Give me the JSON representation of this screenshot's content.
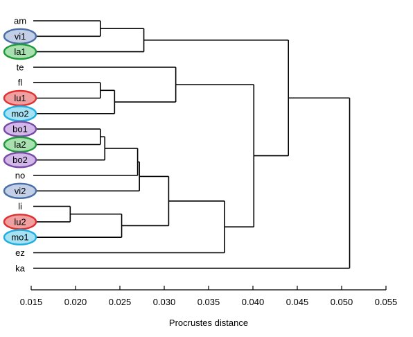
{
  "chart_data": {
    "type": "dendrogram",
    "orientation": "horizontal",
    "xlabel": "Procrustes distance",
    "xlim": [
      0.015,
      0.055
    ],
    "xticks": [
      "0.015",
      "0.020",
      "0.025",
      "0.030",
      "0.035",
      "0.040",
      "0.045",
      "0.050",
      "0.055"
    ],
    "leaves": [
      {
        "label": "am",
        "ellipse": null
      },
      {
        "label": "vi1",
        "ellipse": "#c2cfe6"
      },
      {
        "label": "la1",
        "ellipse": "#a8e0b0"
      },
      {
        "label": "te",
        "ellipse": null
      },
      {
        "label": "fl",
        "ellipse": null
      },
      {
        "label": "lu1",
        "ellipse": "#f0a0a0"
      },
      {
        "label": "mo2",
        "ellipse": "#a6e2f4"
      },
      {
        "label": "bo1",
        "ellipse": "#d2b8e8"
      },
      {
        "label": "la2",
        "ellipse": "#a8e0b0"
      },
      {
        "label": "bo2",
        "ellipse": "#d2b8e8"
      },
      {
        "label": "no",
        "ellipse": null
      },
      {
        "label": "vi2",
        "ellipse": "#c2cfe6"
      },
      {
        "label": "li",
        "ellipse": null
      },
      {
        "label": "lu2",
        "ellipse": "#f0a0a0"
      },
      {
        "label": "mo1",
        "ellipse": "#a6e2f4"
      },
      {
        "label": "ez",
        "ellipse": null
      },
      {
        "label": "ka",
        "ellipse": null
      }
    ],
    "ellipse_borders": {
      "#c2cfe6": "#4b6fa8",
      "#a8e0b0": "#1f9a3a",
      "#f0a0a0": "#e03030",
      "#a6e2f4": "#1eaee0",
      "#d2b8e8": "#7a4aa8"
    },
    "merges": [
      {
        "id": "c1",
        "children": [
          "am",
          "vi1"
        ],
        "height": 0.0228
      },
      {
        "id": "c2",
        "children": [
          "c1",
          "la1"
        ],
        "height": 0.0277
      },
      {
        "id": "c3",
        "children": [
          "fl",
          "lu1"
        ],
        "height": 0.0228
      },
      {
        "id": "c4",
        "children": [
          "c3",
          "mo2"
        ],
        "height": 0.0244
      },
      {
        "id": "c5",
        "children": [
          "te",
          "c4"
        ],
        "height": 0.0313
      },
      {
        "id": "c6",
        "children": [
          "bo1",
          "la2"
        ],
        "height": 0.0228
      },
      {
        "id": "c7",
        "children": [
          "c6",
          "bo2"
        ],
        "height": 0.0233
      },
      {
        "id": "c8",
        "children": [
          "c7",
          "no"
        ],
        "height": 0.027
      },
      {
        "id": "c9",
        "children": [
          "c8",
          "vi2"
        ],
        "height": 0.0272
      },
      {
        "id": "c10",
        "children": [
          "li",
          "lu2"
        ],
        "height": 0.0194
      },
      {
        "id": "c11",
        "children": [
          "c10",
          "mo1"
        ],
        "height": 0.0252
      },
      {
        "id": "c12",
        "children": [
          "c9",
          "c11"
        ],
        "height": 0.0305
      },
      {
        "id": "c13",
        "children": [
          "c12",
          "ez"
        ],
        "height": 0.0368
      },
      {
        "id": "c14",
        "children": [
          "c5",
          "c13"
        ],
        "height": 0.0401
      },
      {
        "id": "c15",
        "children": [
          "c2",
          "c14"
        ],
        "height": 0.044
      },
      {
        "id": "c16",
        "children": [
          "c15",
          "ka"
        ],
        "height": 0.0509
      }
    ]
  }
}
